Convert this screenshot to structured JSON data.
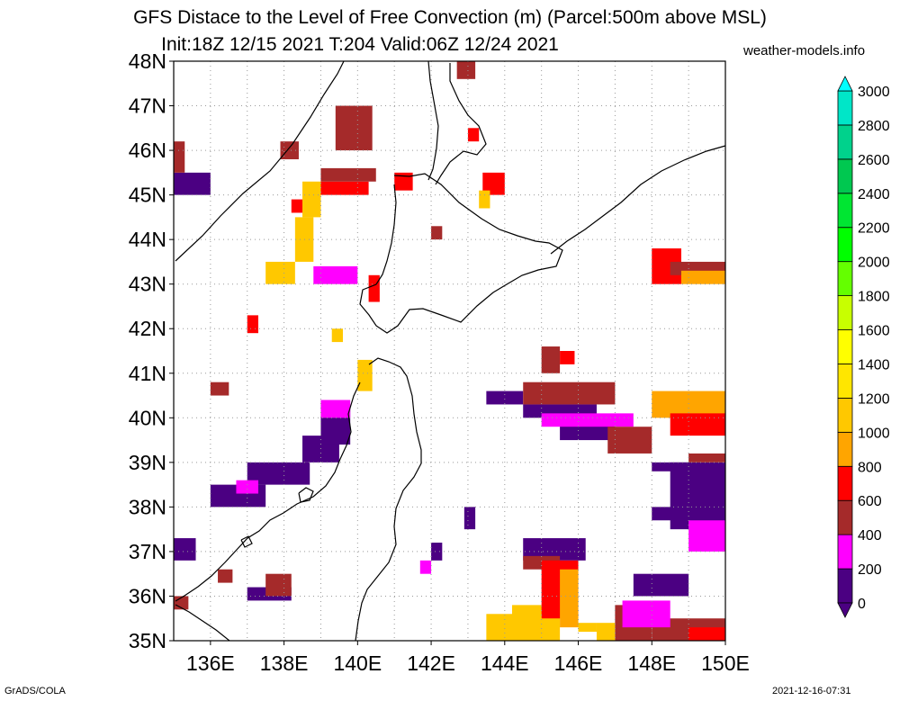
{
  "title_line1": "GFS Distace to the Level of Free Convection (m) (Parcel:500m above MSL)",
  "title_line2": "Init:18Z 12/15 2021 T:204 Valid:06Z 12/24 2021",
  "brand": "weather-models.info",
  "footer_left": "GrADS/COLA",
  "footer_right": "2021-12-16-07:31",
  "map": {
    "lon_labels": [
      "136E",
      "138E",
      "140E",
      "142E",
      "144E",
      "146E",
      "148E",
      "150E"
    ],
    "lat_labels": [
      "35N",
      "36N",
      "37N",
      "38N",
      "39N",
      "40N",
      "41N",
      "42N",
      "43N",
      "44N",
      "45N",
      "46N",
      "47N",
      "48N"
    ],
    "lon_range": [
      135,
      150
    ],
    "lat_range": [
      35,
      48
    ],
    "grid": "dotted",
    "coastline_color": "#000000"
  },
  "colorbar": {
    "labels": [
      "0",
      "200",
      "400",
      "600",
      "800",
      "1000",
      "1200",
      "1400",
      "1600",
      "1800",
      "2000",
      "2200",
      "2400",
      "2600",
      "2800",
      "3000"
    ],
    "colors": [
      "#4b0082",
      "#ff00ff",
      "#a52a2a",
      "#ff0000",
      "#ffa500",
      "#ffc800",
      "#ffe600",
      "#ffff00",
      "#c8ff00",
      "#64ff00",
      "#00ff00",
      "#00e632",
      "#00c850",
      "#00d28c",
      "#00e6c8",
      "#00ffff"
    ]
  }
}
